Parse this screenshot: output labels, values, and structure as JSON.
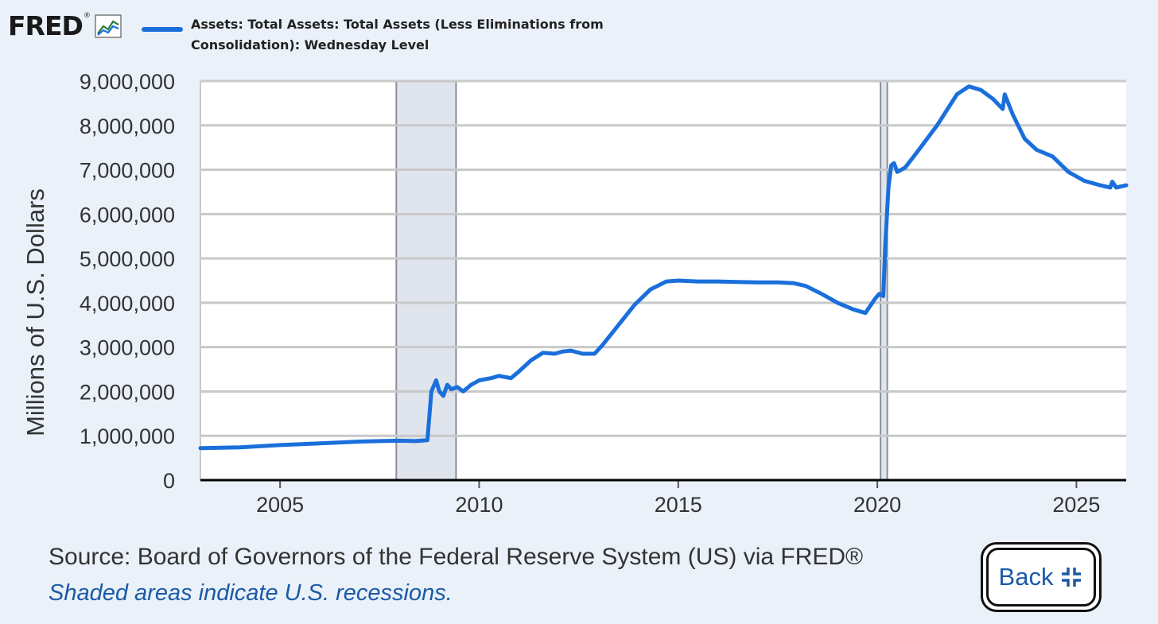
{
  "header": {
    "logo_text": "FRED",
    "logo_reg": "®",
    "legend_label": "Assets: Total Assets: Total Assets (Less Eliminations from Consolidation): Wednesday Level"
  },
  "footer": {
    "source": "Source: Board of Governors of the Federal Reserve System (US) via FRED®",
    "recession_note": "Shaded areas indicate U.S. recessions.",
    "back_label": "Back"
  },
  "colors": {
    "series": "#1a6fdb",
    "recession": "#e0e4ec",
    "grid": "#c9c9c9",
    "background": "#eaf1f9"
  },
  "chart_data": {
    "type": "line",
    "title": "Assets: Total Assets: Total Assets (Less Eliminations from Consolidation): Wednesday Level",
    "xlabel": "",
    "ylabel": "Millions of U.S. Dollars",
    "xlim": [
      2003.0,
      2026.25
    ],
    "ylim": [
      0,
      9000000
    ],
    "x_ticks": [
      2005,
      2010,
      2015,
      2020,
      2025
    ],
    "y_ticks": [
      0,
      1000000,
      2000000,
      3000000,
      4000000,
      5000000,
      6000000,
      7000000,
      8000000,
      9000000
    ],
    "y_tick_labels": [
      "0",
      "1,000,000",
      "2,000,000",
      "3,000,000",
      "4,000,000",
      "5,000,000",
      "6,000,000",
      "7,000,000",
      "8,000,000",
      "9,000,000"
    ],
    "grid": true,
    "legend": "top-left",
    "recessions": [
      [
        2007.92,
        2009.42
      ],
      [
        2020.08,
        2020.25
      ]
    ],
    "series": [
      {
        "name": "Assets: Total Assets: Total Assets (Less Eliminations from Consolidation): Wednesday Level",
        "x": [
          2003.0,
          2004.0,
          2005.0,
          2006.0,
          2007.0,
          2007.5,
          2008.0,
          2008.4,
          2008.7,
          2008.8,
          2008.92,
          2009.0,
          2009.1,
          2009.2,
          2009.3,
          2009.45,
          2009.6,
          2009.8,
          2010.0,
          2010.3,
          2010.5,
          2010.8,
          2011.0,
          2011.3,
          2011.6,
          2011.9,
          2012.1,
          2012.3,
          2012.6,
          2012.9,
          2013.1,
          2013.5,
          2013.9,
          2014.3,
          2014.7,
          2015.0,
          2015.5,
          2016.0,
          2016.5,
          2017.0,
          2017.5,
          2017.9,
          2018.2,
          2018.6,
          2019.0,
          2019.4,
          2019.7,
          2019.95,
          2020.05,
          2020.15,
          2020.2,
          2020.28,
          2020.35,
          2020.42,
          2020.5,
          2020.7,
          2021.0,
          2021.5,
          2022.0,
          2022.3,
          2022.6,
          2022.9,
          2023.15,
          2023.2,
          2023.4,
          2023.7,
          2024.0,
          2024.4,
          2024.8,
          2025.2,
          2025.6,
          2025.85,
          2025.9,
          2026.0,
          2026.25
        ],
        "y": [
          720000,
          740000,
          790000,
          830000,
          870000,
          880000,
          890000,
          880000,
          900000,
          2000000,
          2250000,
          2000000,
          1900000,
          2150000,
          2050000,
          2100000,
          2000000,
          2150000,
          2250000,
          2300000,
          2350000,
          2300000,
          2450000,
          2700000,
          2870000,
          2850000,
          2900000,
          2920000,
          2850000,
          2850000,
          3050000,
          3500000,
          3950000,
          4300000,
          4480000,
          4500000,
          4480000,
          4480000,
          4470000,
          4460000,
          4460000,
          4440000,
          4380000,
          4200000,
          4000000,
          3850000,
          3770000,
          4100000,
          4200000,
          4150000,
          5300000,
          6600000,
          7100000,
          7150000,
          6950000,
          7050000,
          7400000,
          8000000,
          8700000,
          8880000,
          8800000,
          8600000,
          8370000,
          8700000,
          8250000,
          7700000,
          7450000,
          7300000,
          6950000,
          6750000,
          6650000,
          6600000,
          6730000,
          6600000,
          6650000
        ]
      }
    ]
  }
}
